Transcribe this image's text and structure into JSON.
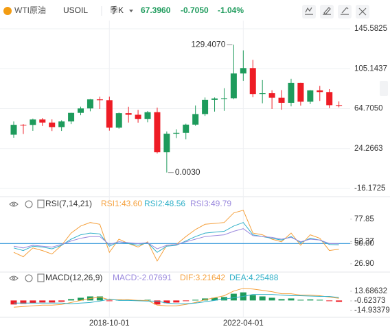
{
  "header": {
    "name": "WTI原油",
    "symbol": "USOIL",
    "period": "季K",
    "price": "67.3960",
    "change": "-0.7050",
    "change_pct": "-1.04%"
  },
  "chart_data": [
    {
      "type": "candlestick",
      "categories": [
        null,
        null,
        null,
        null,
        null,
        null,
        null,
        null,
        null,
        null,
        "2018-10-01",
        null,
        null,
        null,
        null,
        null,
        null,
        null,
        null,
        null,
        null,
        null,
        null,
        null,
        "2022-04-01",
        null,
        null,
        null,
        null,
        null,
        null,
        null,
        null,
        null,
        null
      ],
      "open": [
        38.3,
        48.3,
        48.2,
        53.7,
        50.6,
        46.0,
        51.7,
        60.4,
        64.9,
        74.1,
        73.2,
        45.4,
        60.1,
        58.5,
        54.1,
        61.1,
        20.5,
        39.3,
        40.2,
        48.5,
        59.2,
        73.5,
        75.0,
        75.2,
        100.3,
        105.8,
        79.5,
        80.3,
        75.7,
        70.6,
        90.8,
        71.7,
        83.2,
        81.5,
        68.2
      ],
      "high": [
        51.7,
        49.0,
        54.5,
        55.2,
        53.8,
        52.9,
        60.5,
        66.7,
        74.5,
        76.9,
        76.9,
        60.7,
        66.6,
        63.4,
        62.3,
        65.7,
        41.6,
        43.8,
        49.4,
        67.9,
        76.0,
        76.0,
        85.4,
        129.407,
        123.7,
        114.1,
        93.6,
        83.3,
        83.5,
        95.0,
        90.9,
        83.5,
        87.7,
        84.5,
        72.0
      ],
      "low": [
        35.2,
        39.0,
        42.2,
        47.1,
        42.0,
        42.1,
        49.0,
        58.0,
        62.0,
        64.4,
        42.4,
        44.4,
        50.6,
        50.5,
        50.9,
        19.3,
        0.003,
        34.9,
        33.6,
        47.3,
        57.3,
        61.7,
        62.4,
        74.3,
        92.9,
        76.3,
        70.1,
        64.4,
        63.6,
        67.0,
        67.7,
        69.3,
        72.5,
        65.2,
        66.0
      ],
      "close": [
        48.3,
        48.2,
        53.7,
        50.6,
        46.0,
        51.7,
        60.4,
        64.9,
        74.1,
        73.2,
        45.4,
        60.1,
        58.5,
        54.1,
        61.1,
        20.5,
        39.3,
        40.2,
        48.5,
        59.2,
        73.5,
        75.0,
        75.2,
        100.3,
        105.8,
        79.5,
        80.3,
        75.7,
        70.6,
        90.8,
        71.7,
        83.2,
        81.5,
        68.2,
        67.396
      ],
      "up_color": "#1e9b5c",
      "down_color": "#ee1c25",
      "ylim": [
        -23.1,
        153.9
      ],
      "yticks": [
        145.5825,
        105.1437,
        {
          "value": 64.705,
          "label": "64.7050"
        },
        24.2663,
        -16.1725
      ],
      "annotations": [
        "129.4070",
        "0.0030"
      ],
      "grid": true
    },
    {
      "type": "line",
      "title": "RSI(7,14,21)",
      "series": [
        {
          "name": "RSI1:43.60",
          "color": "#f5a03c",
          "values": [
            40,
            35,
            45,
            42,
            38,
            48,
            62,
            70,
            74,
            72,
            40,
            55,
            50,
            46,
            52,
            30,
            48,
            49,
            58,
            66,
            72,
            73,
            74,
            85,
            88,
            62,
            60,
            55,
            52,
            62,
            48,
            60,
            56,
            42,
            43.6
          ]
        },
        {
          "name": "RSI2:48.56",
          "color": "#2fb0c8",
          "values": [
            45,
            42,
            47,
            46,
            44,
            48,
            55,
            60,
            62,
            61,
            47,
            52,
            50,
            48,
            51,
            40,
            47,
            48,
            53,
            58,
            62,
            63,
            64,
            70,
            74,
            60,
            58,
            56,
            54,
            58,
            51,
            56,
            54,
            49,
            48.56
          ]
        },
        {
          "name": "RSI3:49.79",
          "color": "#9a88dd",
          "values": [
            47,
            45,
            48,
            47,
            46,
            49,
            53,
            56,
            58,
            58,
            49,
            52,
            51,
            50,
            51,
            44,
            48,
            49,
            52,
            55,
            58,
            59,
            60,
            64,
            67,
            59,
            58,
            57,
            55,
            57,
            52,
            55,
            54,
            50,
            49.79
          ]
        }
      ],
      "ylim": [
        19,
        91
      ],
      "yticks": [
        77.85,
        52.37,
        {
          "value": 50,
          "label": "50.00"
        },
        {
          "value": 26.9,
          "label": "26.90"
        }
      ],
      "reference_line_color": "#4aa3df"
    },
    {
      "type": "macd",
      "title": "MACD(12,26,9)",
      "series": [
        {
          "name": "MACD:-2.07691",
          "color": "#9a88dd",
          "kind": "bar",
          "values": [
            -6,
            -5,
            -4,
            -3,
            -3,
            -2,
            2,
            4,
            6,
            6,
            -1,
            1,
            1,
            0.5,
            1,
            -6,
            -4,
            -3,
            -1,
            1,
            3,
            4,
            5,
            10,
            12,
            8,
            6,
            4,
            2,
            3,
            1,
            1.5,
            1,
            -1,
            -2.07691
          ]
        },
        {
          "name": "DIF:3.21642",
          "color": "#f5a03c",
          "kind": "line",
          "values": [
            -10,
            -9,
            -8,
            -7,
            -7,
            -6,
            -3,
            0,
            3,
            5,
            1,
            1,
            1,
            0,
            0,
            -7,
            -8,
            -8,
            -6,
            -3,
            1,
            4,
            7,
            14,
            18,
            17,
            15,
            13,
            10,
            10,
            8,
            8,
            7,
            5,
            3.21642
          ]
        },
        {
          "name": "DEA:4.25488",
          "color": "#2fb0c8",
          "kind": "line",
          "values": [
            -4,
            -4,
            -4,
            -4,
            -4,
            -4,
            -5,
            -4,
            -3,
            -1,
            2,
            0,
            0,
            -0.5,
            -1,
            -1,
            -4,
            -5,
            -5,
            -4,
            -2,
            0,
            2,
            4,
            6,
            9,
            9,
            9,
            8,
            7,
            7,
            6.5,
            6,
            6,
            4.25488
          ]
        }
      ],
      "up_color": "#1e9b5c",
      "down_color": "#ee1c25",
      "ylim": [
        -24,
        34
      ],
      "yticks": [
        13.68632,
        -0.62373,
        -14.93379
      ]
    }
  ]
}
